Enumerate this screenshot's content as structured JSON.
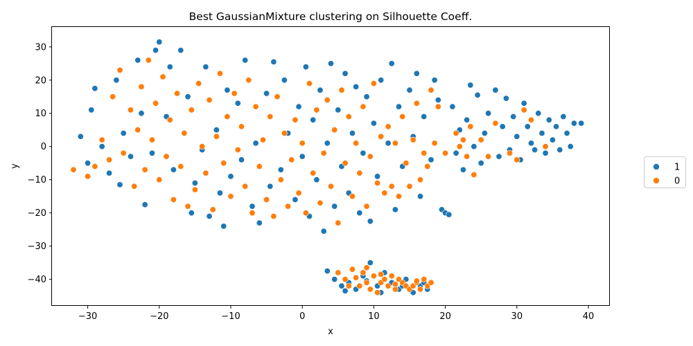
{
  "chart_data": {
    "type": "scatter",
    "title": "Best GaussianMixture clustering on Silhouette Coeff.",
    "xlabel": "x",
    "ylabel": "y",
    "xlim": [
      -35,
      43
    ],
    "ylim": [
      -48,
      36
    ],
    "xticks": [
      -30,
      -20,
      -10,
      0,
      10,
      20,
      30,
      40
    ],
    "yticks": [
      -40,
      -30,
      -20,
      -10,
      0,
      10,
      20,
      30
    ],
    "legend_position": "right",
    "grid": false,
    "series": [
      {
        "name": "1",
        "color": "#1f77b4",
        "points": [
          [
            -30,
            -5
          ],
          [
            -31,
            3
          ],
          [
            -29.5,
            11
          ],
          [
            -29,
            17.5
          ],
          [
            -28,
            0
          ],
          [
            -27,
            -8
          ],
          [
            -26,
            20
          ],
          [
            -25.5,
            -11.5
          ],
          [
            -25,
            4
          ],
          [
            -24,
            -3
          ],
          [
            -23,
            26
          ],
          [
            -22.5,
            10
          ],
          [
            -22,
            -17.5
          ],
          [
            -21,
            -2
          ],
          [
            -20.5,
            29
          ],
          [
            -20,
            31.5
          ],
          [
            -19,
            9
          ],
          [
            -18.5,
            24
          ],
          [
            -18,
            -7
          ],
          [
            -17,
            29
          ],
          [
            -16,
            15
          ],
          [
            -15.5,
            -20
          ],
          [
            -15,
            -11
          ],
          [
            -14,
            -1
          ],
          [
            -13.5,
            24
          ],
          [
            -13,
            -21
          ],
          [
            -12,
            5
          ],
          [
            -11.5,
            -14
          ],
          [
            -11,
            -24
          ],
          [
            -10.5,
            17
          ],
          [
            -10,
            -9
          ],
          [
            -9,
            13
          ],
          [
            -8.5,
            -4
          ],
          [
            -8,
            26
          ],
          [
            -7,
            -18
          ],
          [
            -6.5,
            1
          ],
          [
            -6,
            -23
          ],
          [
            -5,
            16
          ],
          [
            -4.5,
            -12
          ],
          [
            -4,
            25.5
          ],
          [
            -3,
            -7
          ],
          [
            -2.5,
            20
          ],
          [
            -2,
            4
          ],
          [
            -1,
            -16
          ],
          [
            -0.5,
            12
          ],
          [
            0,
            -3
          ],
          [
            0.5,
            24
          ],
          [
            1,
            -21
          ],
          [
            1.5,
            8
          ],
          [
            2,
            -10
          ],
          [
            2.5,
            17
          ],
          [
            3,
            -25.5
          ],
          [
            3.5,
            1
          ],
          [
            4,
            25
          ],
          [
            4.5,
            -18
          ],
          [
            5,
            11
          ],
          [
            5.5,
            -6
          ],
          [
            6,
            22
          ],
          [
            6.5,
            -14
          ],
          [
            7,
            4
          ],
          [
            7.5,
            18
          ],
          [
            8,
            -20
          ],
          [
            8.5,
            -2
          ],
          [
            9,
            15
          ],
          [
            9.5,
            -22.5
          ],
          [
            10,
            7
          ],
          [
            10.5,
            -9
          ],
          [
            11,
            20
          ],
          [
            11.5,
            -14
          ],
          [
            12,
            1
          ],
          [
            12.5,
            25
          ],
          [
            13,
            -19
          ],
          [
            13.5,
            12
          ],
          [
            14,
            -6
          ],
          [
            15,
            17
          ],
          [
            15.5,
            3
          ],
          [
            16,
            22
          ],
          [
            16.5,
            -15
          ],
          [
            17,
            9
          ],
          [
            18,
            -4
          ],
          [
            18.5,
            20
          ],
          [
            19,
            14
          ],
          [
            19.5,
            -19
          ],
          [
            20,
            -20
          ],
          [
            20.5,
            -20.5
          ],
          [
            21,
            12
          ],
          [
            21.5,
            -2
          ],
          [
            22,
            5
          ],
          [
            22.5,
            -7
          ],
          [
            23,
            8
          ],
          [
            23.5,
            18.5
          ],
          [
            24,
            0
          ],
          [
            24.5,
            15.5
          ],
          [
            25,
            -5
          ],
          [
            25.5,
            4
          ],
          [
            26,
            10
          ],
          [
            27,
            17
          ],
          [
            27.5,
            -3
          ],
          [
            28,
            6
          ],
          [
            28.5,
            14.5
          ],
          [
            29,
            -1
          ],
          [
            29.5,
            9
          ],
          [
            30,
            3
          ],
          [
            30.5,
            -4
          ],
          [
            31,
            13
          ],
          [
            31.5,
            6
          ],
          [
            32,
            1
          ],
          [
            32.5,
            -1
          ],
          [
            33,
            10
          ],
          [
            33.5,
            4
          ],
          [
            34,
            -2
          ],
          [
            34.5,
            8
          ],
          [
            35,
            2
          ],
          [
            35.5,
            6
          ],
          [
            36,
            -1
          ],
          [
            36.5,
            9
          ],
          [
            37,
            4
          ],
          [
            37.5,
            0
          ],
          [
            38,
            7
          ],
          [
            39,
            7
          ],
          [
            4.5,
            -40
          ],
          [
            5.5,
            -42
          ],
          [
            6.5,
            -41
          ],
          [
            7.5,
            -43
          ],
          [
            8.5,
            -39
          ],
          [
            9.5,
            -35
          ],
          [
            10.5,
            -42
          ],
          [
            11.5,
            -38
          ],
          [
            12.5,
            -41
          ],
          [
            13.5,
            -43
          ],
          [
            14.5,
            -40
          ],
          [
            15.5,
            -44
          ],
          [
            16.5,
            -42
          ],
          [
            17,
            -41
          ],
          [
            3.5,
            -37.5
          ],
          [
            11,
            -44
          ],
          [
            14,
            -42
          ],
          [
            17.5,
            -43
          ],
          [
            9,
            -40.5
          ],
          [
            6,
            -43.5
          ]
        ]
      },
      {
        "name": "0",
        "color": "#ff7f0e",
        "points": [
          [
            -32,
            -7
          ],
          [
            -30,
            -9
          ],
          [
            -29,
            -6
          ],
          [
            -28,
            2
          ],
          [
            -27,
            -4
          ],
          [
            -26.5,
            15
          ],
          [
            -25.5,
            23
          ],
          [
            -25,
            -2
          ],
          [
            -24,
            11
          ],
          [
            -23.5,
            -12
          ],
          [
            -23,
            5
          ],
          [
            -22.5,
            18
          ],
          [
            -22,
            -7
          ],
          [
            -21.5,
            26
          ],
          [
            -21,
            2
          ],
          [
            -20.5,
            13
          ],
          [
            -20,
            -10
          ],
          [
            -19.5,
            21
          ],
          [
            -19,
            -3
          ],
          [
            -18.5,
            8
          ],
          [
            -18,
            -16
          ],
          [
            -17.5,
            16
          ],
          [
            -17,
            -6
          ],
          [
            -16.5,
            4
          ],
          [
            -16,
            -18
          ],
          [
            -15.5,
            11
          ],
          [
            -15,
            -13
          ],
          [
            -14.5,
            19
          ],
          [
            -14,
            0
          ],
          [
            -13.5,
            -8
          ],
          [
            -13,
            14
          ],
          [
            -12.5,
            -19
          ],
          [
            -12,
            3
          ],
          [
            -11.5,
            22
          ],
          [
            -11,
            -5
          ],
          [
            -10.5,
            9
          ],
          [
            -10,
            -15
          ],
          [
            -9.5,
            16
          ],
          [
            -9,
            -1
          ],
          [
            -8.5,
            6
          ],
          [
            -8,
            -12
          ],
          [
            -7.5,
            20
          ],
          [
            -7,
            -20
          ],
          [
            -6.5,
            12
          ],
          [
            -6,
            -6
          ],
          [
            -5.5,
            2
          ],
          [
            -5,
            -16
          ],
          [
            -4.5,
            9
          ],
          [
            -4,
            -21
          ],
          [
            -3.5,
            15
          ],
          [
            -3,
            -10
          ],
          [
            -2.5,
            4
          ],
          [
            -2,
            -18
          ],
          [
            -1.5,
            -4
          ],
          [
            -1,
            8
          ],
          [
            -0.5,
            -14
          ],
          [
            0,
            1
          ],
          [
            0.5,
            -20
          ],
          [
            1,
            19
          ],
          [
            1.5,
            -8
          ],
          [
            2,
            11
          ],
          [
            2.5,
            -17
          ],
          [
            3,
            -2
          ],
          [
            3.5,
            14
          ],
          [
            4,
            -12
          ],
          [
            4.5,
            5
          ],
          [
            5,
            -23
          ],
          [
            5.5,
            17
          ],
          [
            6,
            -5
          ],
          [
            6.5,
            9
          ],
          [
            7,
            -15
          ],
          [
            7.5,
            1
          ],
          [
            8,
            -8
          ],
          [
            8.5,
            12
          ],
          [
            9,
            -18
          ],
          [
            9.5,
            -3
          ],
          [
            10,
            19
          ],
          [
            10.5,
            -11
          ],
          [
            11,
            3
          ],
          [
            11.5,
            -14
          ],
          [
            12,
            6
          ],
          [
            12.5,
            -12
          ],
          [
            13,
            1
          ],
          [
            13.5,
            -15
          ],
          [
            14,
            9
          ],
          [
            14.5,
            -5
          ],
          [
            15,
            -12
          ],
          [
            15.5,
            2
          ],
          [
            16,
            13
          ],
          [
            16.5,
            -10
          ],
          [
            17,
            -2
          ],
          [
            17.5,
            -6
          ],
          [
            18,
            17
          ],
          [
            18.5,
            1
          ],
          [
            19,
            12
          ],
          [
            21.5,
            4
          ],
          [
            22,
            0
          ],
          [
            22.5,
            2
          ],
          [
            23,
            -3
          ],
          [
            24,
            -8.5
          ],
          [
            25,
            2
          ],
          [
            26,
            -3
          ],
          [
            27,
            7
          ],
          [
            29,
            -2
          ],
          [
            30,
            -4
          ],
          [
            31,
            11
          ],
          [
            32,
            8
          ],
          [
            34,
            0
          ],
          [
            23.5,
            6
          ],
          [
            20,
            -2
          ],
          [
            5,
            -38
          ],
          [
            6,
            -40
          ],
          [
            7,
            -37
          ],
          [
            7.5,
            -39.5
          ],
          [
            8,
            -42
          ],
          [
            8.5,
            -38
          ],
          [
            9,
            -41
          ],
          [
            9.5,
            -43
          ],
          [
            10,
            -39
          ],
          [
            10.5,
            -44
          ],
          [
            11,
            -41
          ],
          [
            11.5,
            -40
          ],
          [
            12,
            -42
          ],
          [
            12.5,
            -39
          ],
          [
            13,
            -43
          ],
          [
            13.5,
            -40
          ],
          [
            14,
            -41
          ],
          [
            14.5,
            -42
          ],
          [
            15,
            -43
          ],
          [
            15.5,
            -42
          ],
          [
            16,
            -41
          ],
          [
            16.5,
            -43
          ],
          [
            17,
            -40
          ],
          [
            17.5,
            -42
          ],
          [
            18,
            -41
          ],
          [
            6.5,
            -42
          ],
          [
            9,
            -36.5
          ],
          [
            11,
            -38.5
          ],
          [
            13,
            -41.5
          ],
          [
            16,
            -40.5
          ]
        ]
      }
    ]
  }
}
